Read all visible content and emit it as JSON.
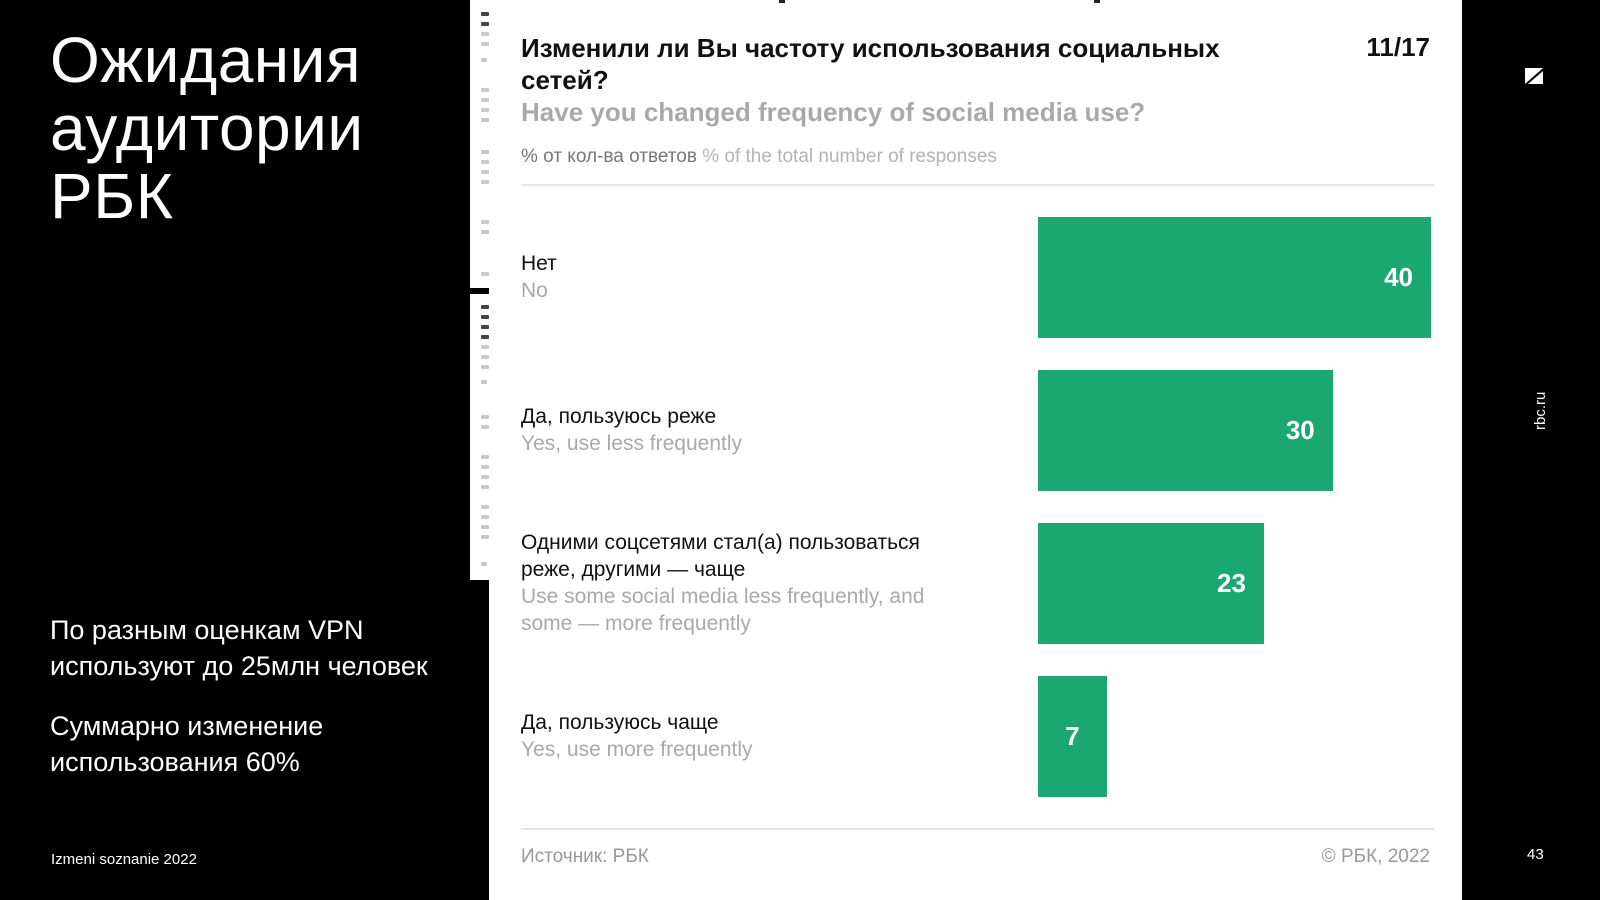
{
  "slide": {
    "title_lines": [
      "Ожидания",
      "аудитории",
      "РБК"
    ],
    "notes": [
      "По разным оценкам VPN используют до 25млн человек",
      "Суммарно изменение использования 60%"
    ],
    "footer_left": "Izmeni soznanie 2022",
    "page_number": "43",
    "brand_vertical": "rbc.ru"
  },
  "card": {
    "question_ru": "Изменили ли Вы частоту использования социальных сетей?",
    "question_en": "Have you changed frequency of social media use?",
    "counter": "11/17",
    "subtitle_ru": "% от кол-ва ответов",
    "subtitle_en": "% of the total number of responses",
    "source": "Источник: РБК",
    "copyright": "© РБК, 2022"
  },
  "chart_data": {
    "type": "bar",
    "orientation": "horizontal",
    "categories": [
      {
        "ru": "Нет",
        "en": "No"
      },
      {
        "ru": "Да, пользуюсь реже",
        "en": "Yes, use less frequently"
      },
      {
        "ru": "Одними соцсетями стал(а) пользоваться реже, другими — чаще",
        "en": "Use some social media less frequently, and some — more frequently"
      },
      {
        "ru": "Да, пользуюсь чаще",
        "en": "Yes, use more frequently"
      }
    ],
    "values": [
      40,
      30,
      23,
      7
    ],
    "xlim": [
      0,
      40
    ],
    "bar_color": "#1aa771",
    "grid": false,
    "legend": "none"
  }
}
